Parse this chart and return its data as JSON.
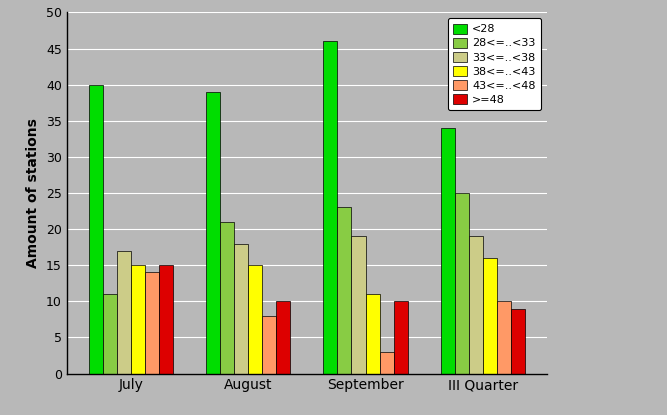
{
  "categories": [
    "July",
    "August",
    "September",
    "III Quarter"
  ],
  "series": [
    {
      "label": "<28",
      "color": "#00DD00",
      "values": [
        40,
        39,
        46,
        34
      ]
    },
    {
      "label": "28<=..<33",
      "color": "#88CC44",
      "values": [
        11,
        21,
        23,
        25
      ]
    },
    {
      "label": "33<=..<38",
      "color": "#CCCC88",
      "values": [
        17,
        18,
        19,
        19
      ]
    },
    {
      "label": "38<=..<43",
      "color": "#FFFF00",
      "values": [
        15,
        15,
        11,
        16
      ]
    },
    {
      "label": "43<=..<48",
      "color": "#FF9966",
      "values": [
        14,
        8,
        3,
        10
      ]
    },
    {
      "label": ">=48",
      "color": "#DD0000",
      "values": [
        15,
        10,
        10,
        9
      ]
    }
  ],
  "ylabel": "Amount of stations",
  "ylim": [
    0,
    50
  ],
  "yticks": [
    0,
    5,
    10,
    15,
    20,
    25,
    30,
    35,
    40,
    45,
    50
  ],
  "background_color": "#B8B8B8",
  "plot_bg_color": "#B8B8B8",
  "bar_edge_color": "#000000",
  "bar_edge_width": 0.5,
  "legend_loc": "upper right",
  "bar_width": 0.12,
  "figsize": [
    6.67,
    4.15
  ],
  "dpi": 100
}
